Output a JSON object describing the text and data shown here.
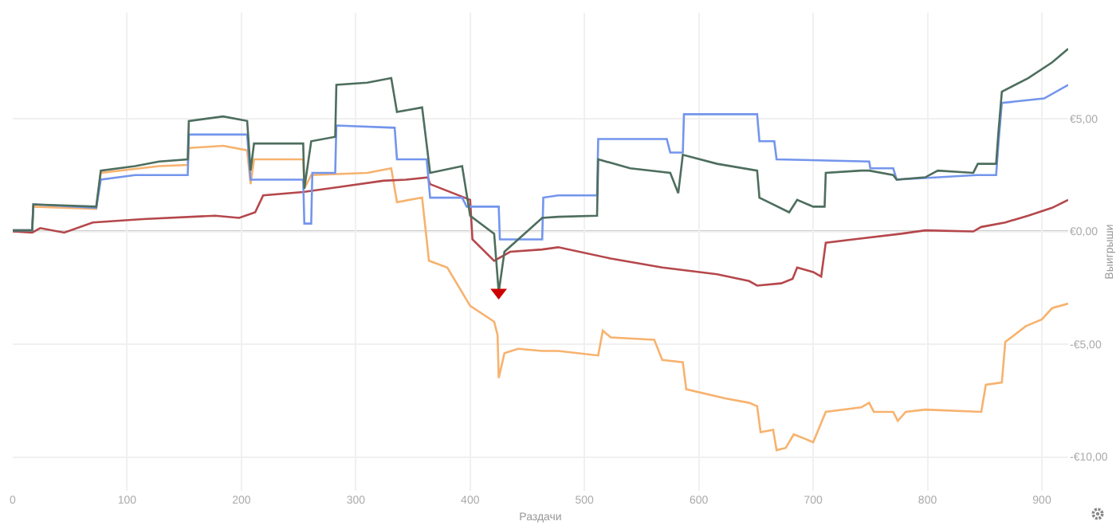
{
  "chart_data": {
    "type": "line",
    "xlabel": "Раздачи",
    "ylabel": "Выигрыши",
    "xlim": [
      0,
      923
    ],
    "ylim": [
      -11.5,
      9.7
    ],
    "xticks": [
      0,
      100,
      200,
      300,
      400,
      500,
      600,
      700,
      800,
      900
    ],
    "yticks": [
      {
        "value": 5,
        "label": "€5,00"
      },
      {
        "value": 0,
        "label": "€0,00"
      },
      {
        "value": -5,
        "label": "-€5,00"
      },
      {
        "value": -10,
        "label": "-€10,00"
      }
    ],
    "grid": true,
    "legend": false,
    "marker": "none",
    "line_style": "solid",
    "ref_lines": [
      {
        "axis": "y",
        "value": 0,
        "label": null,
        "color": "#cccccc"
      }
    ],
    "series": [
      {
        "color": "#f7b26e",
        "x": [
          0,
          17,
          18,
          73,
          77,
          128,
          153,
          154,
          184,
          205,
          208,
          211,
          254,
          255,
          261,
          310,
          331,
          336,
          358,
          364,
          380,
          400,
          421,
          424,
          425,
          430,
          442,
          463,
          477,
          512,
          516,
          523,
          561,
          568,
          586,
          589,
          623,
          644,
          651,
          654,
          665,
          668,
          676,
          683,
          693,
          700,
          711,
          742,
          749,
          753,
          770,
          774,
          781,
          798,
          847,
          851,
          865,
          868,
          886,
          900,
          909,
          923
        ],
        "values": [
          0,
          0,
          1.1,
          1.0,
          2.6,
          2.9,
          2.95,
          3.7,
          3.8,
          3.6,
          2.1,
          3.2,
          3.2,
          1.9,
          2.5,
          2.6,
          2.8,
          1.3,
          1.5,
          -1.3,
          -1.6,
          -3.3,
          -4.0,
          -4.6,
          -6.5,
          -5.4,
          -5.2,
          -5.3,
          -5.3,
          -5.5,
          -4.4,
          -4.7,
          -4.8,
          -5.7,
          -5.8,
          -7.0,
          -7.4,
          -7.6,
          -7.75,
          -8.9,
          -8.8,
          -9.7,
          -9.6,
          -9.0,
          -9.2,
          -9.35,
          -8.0,
          -7.8,
          -7.6,
          -8.0,
          -8.0,
          -8.4,
          -8.0,
          -7.9,
          -8.0,
          -6.8,
          -6.7,
          -4.9,
          -4.2,
          -3.9,
          -3.4,
          -3.2
        ]
      },
      {
        "color": "#b5474b",
        "x": [
          0,
          17,
          24,
          45,
          70,
          114,
          177,
          198,
          212,
          219,
          254,
          289,
          324,
          344,
          363,
          365,
          400,
          402,
          421,
          435,
          463,
          477,
          523,
          568,
          616,
          644,
          651,
          672,
          682,
          686,
          700,
          707,
          711,
          735,
          777,
          798,
          840,
          847,
          868,
          888,
          909,
          923
        ],
        "values": [
          0,
          -0.05,
          0.15,
          -0.05,
          0.4,
          0.55,
          0.7,
          0.6,
          0.85,
          1.6,
          1.75,
          2.0,
          2.25,
          2.3,
          2.4,
          2.1,
          1.4,
          -0.35,
          -1.3,
          -0.9,
          -0.8,
          -0.7,
          -1.2,
          -1.6,
          -1.9,
          -2.2,
          -2.4,
          -2.3,
          -2.1,
          -1.6,
          -1.8,
          -2.0,
          -0.5,
          -0.35,
          -0.1,
          0.05,
          0.0,
          0.2,
          0.4,
          0.7,
          1.05,
          1.4
        ]
      },
      {
        "color": "#7395ec",
        "x": [
          0,
          17,
          18,
          73,
          77,
          107,
          153,
          154,
          205,
          208,
          254,
          255,
          261,
          262,
          282,
          283,
          334,
          336,
          362,
          365,
          393,
          397,
          425,
          426,
          463,
          464,
          477,
          511,
          512,
          572,
          575,
          586,
          587,
          651,
          653,
          666,
          668,
          749,
          750,
          770,
          773,
          843,
          860,
          862,
          865,
          902,
          923
        ],
        "values": [
          0.05,
          0.05,
          1.2,
          1.05,
          2.3,
          2.5,
          2.5,
          4.3,
          4.3,
          2.3,
          2.3,
          0.35,
          0.35,
          2.6,
          2.6,
          4.7,
          4.6,
          3.2,
          3.2,
          1.5,
          1.5,
          1.1,
          1.1,
          -0.35,
          -0.35,
          1.5,
          1.6,
          1.6,
          4.1,
          4.1,
          3.5,
          3.5,
          5.2,
          5.2,
          4.0,
          4.0,
          3.2,
          3.1,
          2.8,
          2.8,
          2.3,
          2.5,
          2.5,
          3.9,
          5.7,
          5.9,
          6.5
        ]
      },
      {
        "color": "#4d6e5e",
        "x": [
          0,
          17,
          18,
          73,
          77,
          107,
          128,
          153,
          154,
          184,
          205,
          208,
          211,
          254,
          255,
          261,
          282,
          283,
          310,
          331,
          336,
          358,
          365,
          393,
          400,
          421,
          425,
          430,
          463,
          477,
          511,
          512,
          540,
          575,
          582,
          586,
          616,
          651,
          653,
          679,
          686,
          700,
          710,
          711,
          742,
          749,
          770,
          773,
          798,
          809,
          840,
          844,
          860,
          862,
          865,
          888,
          909,
          923
        ],
        "values": [
          0.05,
          0.05,
          1.2,
          1.1,
          2.7,
          2.9,
          3.1,
          3.2,
          4.9,
          5.1,
          4.9,
          2.7,
          3.9,
          3.9,
          1.9,
          4.0,
          4.2,
          6.5,
          6.6,
          6.8,
          5.3,
          5.5,
          2.6,
          2.9,
          0.7,
          -0.1,
          -2.7,
          -0.9,
          0.6,
          0.65,
          0.7,
          3.2,
          2.8,
          2.6,
          1.7,
          3.4,
          3.0,
          2.7,
          1.5,
          0.85,
          1.4,
          1.1,
          1.1,
          2.6,
          2.7,
          2.7,
          2.5,
          2.3,
          2.4,
          2.7,
          2.6,
          3.0,
          3.0,
          4.4,
          6.2,
          6.8,
          7.5,
          8.1
        ]
      },
      {
        "type": "scatter",
        "marker": "triangle",
        "color": "#cc0000",
        "x": [
          425
        ],
        "values": [
          -2.7
        ]
      }
    ]
  }
}
